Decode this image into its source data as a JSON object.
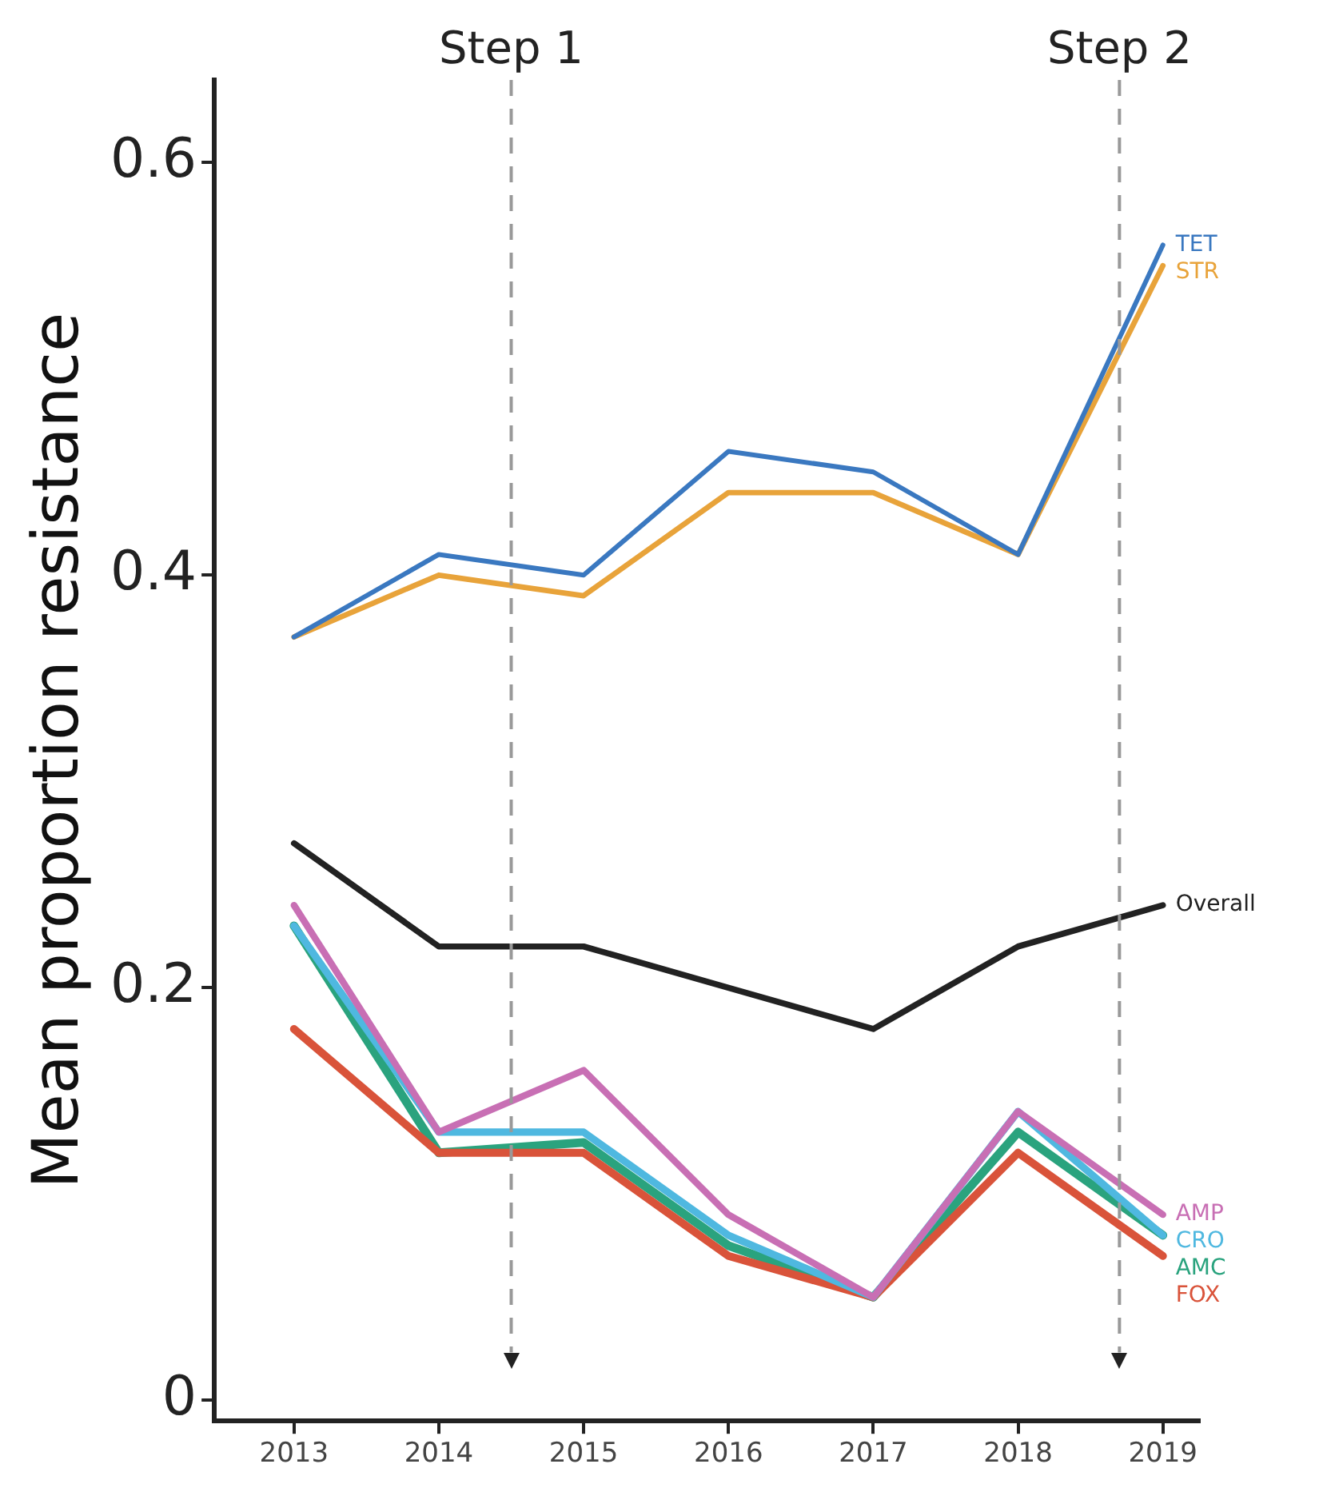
{
  "chart_data": {
    "type": "line",
    "ylabel": "Mean proportion resistance",
    "x": [
      2013,
      2014,
      2015,
      2016,
      2017,
      2018,
      2019
    ],
    "xlim": [
      2012.45,
      2019.25
    ],
    "xticks": [
      2013,
      2014,
      2015,
      2016,
      2017,
      2018,
      2019
    ],
    "ylim": [
      -0.01,
      0.64
    ],
    "yticks": [
      0,
      0.2,
      0.4,
      0.6
    ],
    "grid": false,
    "legend": false,
    "marker": "none",
    "line_style": "solid",
    "series": [
      {
        "name": "TET",
        "color": "#3a78c0",
        "values": [
          0.37,
          0.41,
          0.4,
          0.46,
          0.45,
          0.41,
          0.56
        ]
      },
      {
        "name": "STR",
        "color": "#e8a33a",
        "values": [
          0.37,
          0.4,
          0.39,
          0.44,
          0.44,
          0.41,
          0.55
        ]
      },
      {
        "name": "Overall",
        "color": "#222222",
        "values": [
          0.27,
          0.22,
          0.22,
          0.2,
          0.18,
          0.22,
          0.24
        ]
      },
      {
        "name": "AMP",
        "color": "#c86fb4",
        "values": [
          0.24,
          0.13,
          0.16,
          0.09,
          0.05,
          0.14,
          0.09
        ]
      },
      {
        "name": "CRO",
        "color": "#4fb8e0",
        "values": [
          0.23,
          0.13,
          0.13,
          0.08,
          0.05,
          0.14,
          0.08
        ]
      },
      {
        "name": "FOX",
        "color": "#d9533a",
        "values": [
          0.18,
          0.12,
          0.12,
          0.07,
          0.05,
          0.12,
          0.07
        ]
      },
      {
        "name": "AMC",
        "color": "#2aa37e",
        "values": [
          0.23,
          0.12,
          0.125,
          0.075,
          0.05,
          0.13,
          0.08
        ]
      }
    ],
    "ref_lines": [
      {
        "axis": "x",
        "value": 2014.5,
        "label": "Step 1",
        "color": "#999999",
        "line_style": "dashed"
      },
      {
        "axis": "x",
        "value": 2018.7,
        "label": "Step 2",
        "color": "#999999",
        "line_style": "dashed"
      }
    ]
  }
}
